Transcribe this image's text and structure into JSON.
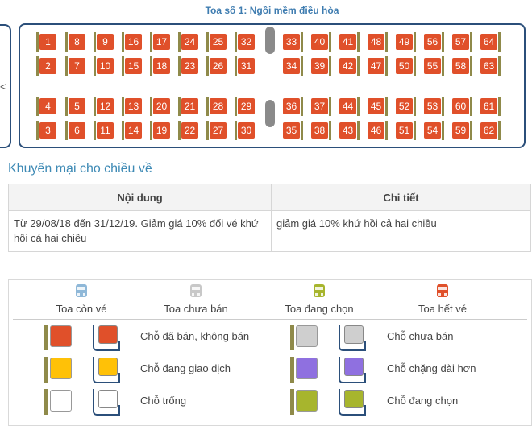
{
  "coach_title": "Toa số 1: Ngồi mềm điều hòa",
  "prev_arrow": "<",
  "seat_columns": [
    [
      1,
      2,
      4,
      3
    ],
    [
      8,
      7,
      5,
      6
    ],
    [
      9,
      10,
      12,
      11
    ],
    [
      16,
      15,
      13,
      14
    ],
    [
      17,
      18,
      20,
      19
    ],
    [
      24,
      23,
      21,
      22
    ],
    [
      25,
      26,
      28,
      27
    ],
    [
      32,
      31,
      29,
      30
    ],
    [
      33,
      34,
      36,
      35
    ],
    [
      40,
      39,
      37,
      38
    ],
    [
      41,
      42,
      44,
      43
    ],
    [
      48,
      47,
      45,
      46
    ],
    [
      49,
      50,
      52,
      51
    ],
    [
      56,
      55,
      53,
      54
    ],
    [
      57,
      58,
      60,
      59
    ],
    [
      64,
      63,
      61,
      62
    ]
  ],
  "promo": {
    "title": "Khuyến mại cho chiều về",
    "headers": [
      "Nội dung",
      "Chi tiết"
    ],
    "content": "Từ 29/08/18 đến 31/12/19. Giảm giá 10% đối vé khứ hồi cả hai chiều",
    "detail": "giảm giá 10% khứ hồi cả hai chiều"
  },
  "legend": {
    "coaches": [
      {
        "label": "Toa còn vé",
        "color": "#8fb8d8"
      },
      {
        "label": "Toa chưa bán",
        "color": "#c8c8c8"
      },
      {
        "label": "Toa đang chọn",
        "color": "#a7b52d"
      },
      {
        "label": "Toa hết vé",
        "color": "#e0502a"
      }
    ],
    "seats": [
      {
        "label": "Chỗ đã bán, không bán",
        "color": "#e0502a"
      },
      {
        "label": "Chỗ đang giao dịch",
        "color": "#ffc107"
      },
      {
        "label": "Chỗ trống",
        "color": "#ffffff"
      },
      {
        "label": "Chỗ chưa bán",
        "color": "#cfcfcf"
      },
      {
        "label": "Chỗ chặng dài hơn",
        "color": "#8f70e0"
      },
      {
        "label": "Chỗ đang chọn",
        "color": "#a7b52d"
      }
    ]
  }
}
